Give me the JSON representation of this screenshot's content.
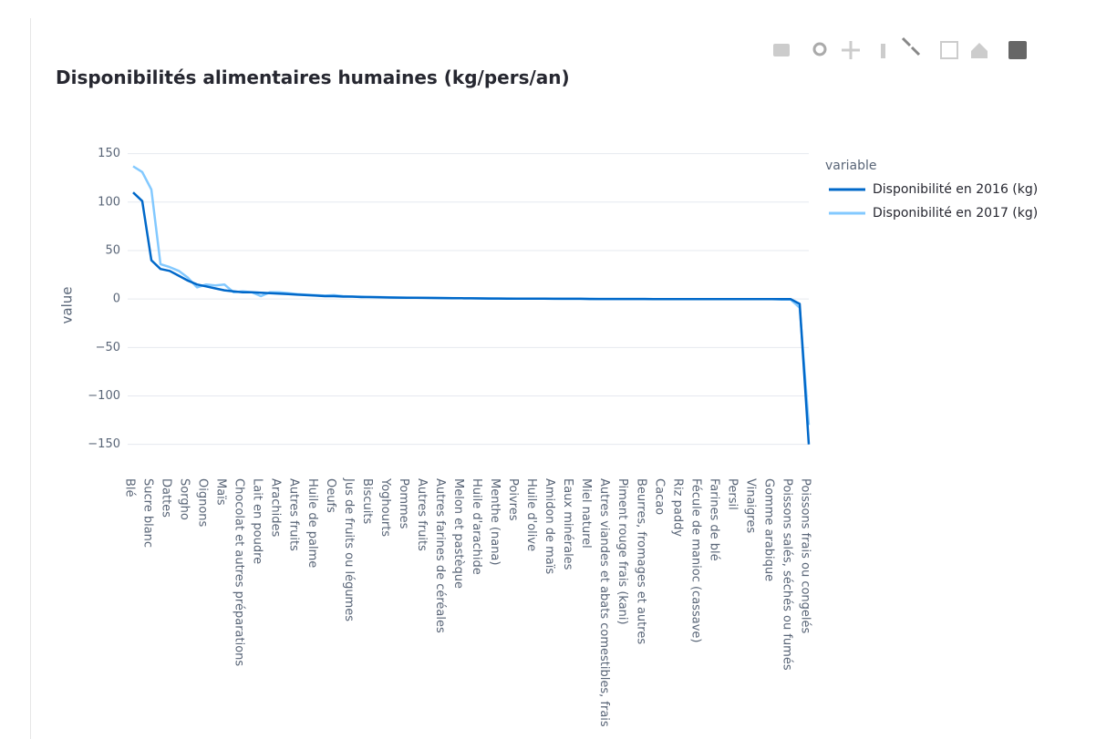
{
  "chart_data": {
    "type": "line",
    "title": "Disponibilités alimentaires humaines (kg/pers/an)",
    "y_label": "value",
    "legend_title": "variable",
    "legend_position": "right",
    "grid": true,
    "categories": [
      "Blé",
      null,
      "Sucre blanc",
      null,
      "Dattes",
      null,
      "Sorgho",
      null,
      "Oignons",
      null,
      "Maïs",
      null,
      "Chocolat et autres préparations",
      null,
      "Lait en poudre",
      null,
      "Arachides",
      null,
      "Autres fruits",
      null,
      "Huile de palme",
      null,
      "Oeufs",
      null,
      "Jus de fruits ou légumes",
      null,
      "Biscuits",
      null,
      "Yoghourts",
      null,
      "Pommes",
      null,
      "Autres fruits",
      null,
      "Autres farines de céréales",
      null,
      "Melon et pastèque",
      null,
      "Huile d'arachide",
      null,
      "Menthe (nana)",
      null,
      "Poivres",
      null,
      "Huile d'olive",
      null,
      "Amidon de maïs",
      null,
      "Eaux minérales",
      null,
      "Miel naturel",
      null,
      "Autres viandes et abats comestibles, frais",
      null,
      "Piment rouge frais (kani)",
      null,
      "Beurres, fromages et autres",
      null,
      "Cacao",
      null,
      "Riz paddy",
      null,
      "Fécule de manioc (cassave)",
      null,
      "Farines de blé",
      null,
      "Persil",
      null,
      "Vinaigres",
      null,
      "Gomme arabique",
      null,
      "Poissons salés, séchés ou fumés",
      null,
      "Poissons frais ou congelés"
    ],
    "series": [
      {
        "name": "Disponibilité en 2016 (kg)",
        "color": "#0068c9",
        "values": [
          110,
          101,
          40,
          31,
          29,
          24,
          19,
          15,
          13,
          11,
          9,
          8,
          7,
          7,
          6.5,
          6,
          5.5,
          5,
          4.5,
          4,
          3.5,
          3,
          3,
          2.5,
          2.5,
          2,
          2,
          1.8,
          1.6,
          1.5,
          1.4,
          1.3,
          1.2,
          1.1,
          1,
          0.9,
          0.8,
          0.7,
          0.6,
          0.5,
          0.5,
          0.4,
          0.4,
          0.3,
          0.3,
          0.3,
          0.2,
          0.2,
          0.2,
          0.2,
          0.1,
          0.1,
          0.1,
          0.1,
          0.1,
          0.1,
          0.1,
          0,
          0,
          0,
          0,
          0,
          0,
          0,
          0,
          0,
          0,
          0,
          0,
          0,
          0,
          0,
          0,
          -5,
          -150
        ]
      },
      {
        "name": "Disponibilité en 2017 (kg)",
        "color": "#83c9ff",
        "values": [
          137,
          131,
          113,
          36,
          33,
          29,
          22,
          12,
          15,
          14,
          15,
          7,
          8,
          7,
          3,
          7,
          7,
          6,
          5,
          4.5,
          4,
          3.5,
          4,
          3,
          2.5,
          2.5,
          2,
          2,
          1.8,
          1.6,
          1.5,
          1.4,
          1.3,
          1.2,
          1.1,
          1,
          0.9,
          0.8,
          0.7,
          0.6,
          0.5,
          0.5,
          0.4,
          0.4,
          0.3,
          0.3,
          0.3,
          0.2,
          0.2,
          0.2,
          0.2,
          0.1,
          0.1,
          0.1,
          0.1,
          0.1,
          0.1,
          0,
          0,
          0,
          0,
          0,
          0,
          0,
          0,
          0,
          0,
          0,
          0,
          0,
          0,
          -0.5,
          -0.5,
          -9,
          -130
        ]
      }
    ],
    "ylim": [
      -155,
      160
    ],
    "yticks": [
      {
        "value": -150,
        "label": "−150"
      },
      {
        "value": -100,
        "label": "−100"
      },
      {
        "value": -50,
        "label": "−50"
      },
      0,
      50,
      100,
      150
    ]
  }
}
